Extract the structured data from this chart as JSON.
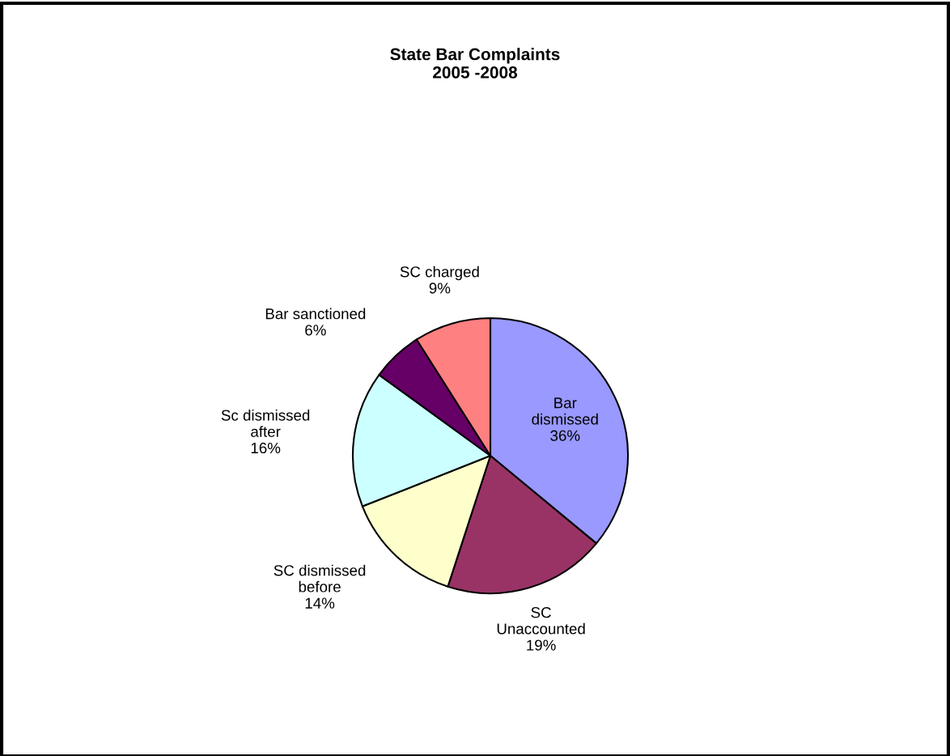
{
  "chart_data": {
    "type": "pie",
    "title": "State Bar Complaints\n2005 -2008",
    "categories": [
      "Bar\ndismissed",
      "SC\nUnaccounted",
      "SC dismissed\nbefore",
      "Sc dismissed\nafter",
      "Bar sanctioned",
      "SC charged"
    ],
    "values": [
      36,
      19,
      14,
      16,
      6,
      9
    ],
    "colors": [
      "#9999ff",
      "#993366",
      "#ffffcc",
      "#ccffff",
      "#660066",
      "#ff8080"
    ],
    "value_labels": [
      "36%",
      "19%",
      "14%",
      "16%",
      "6%",
      "9%"
    ],
    "legend": false
  }
}
